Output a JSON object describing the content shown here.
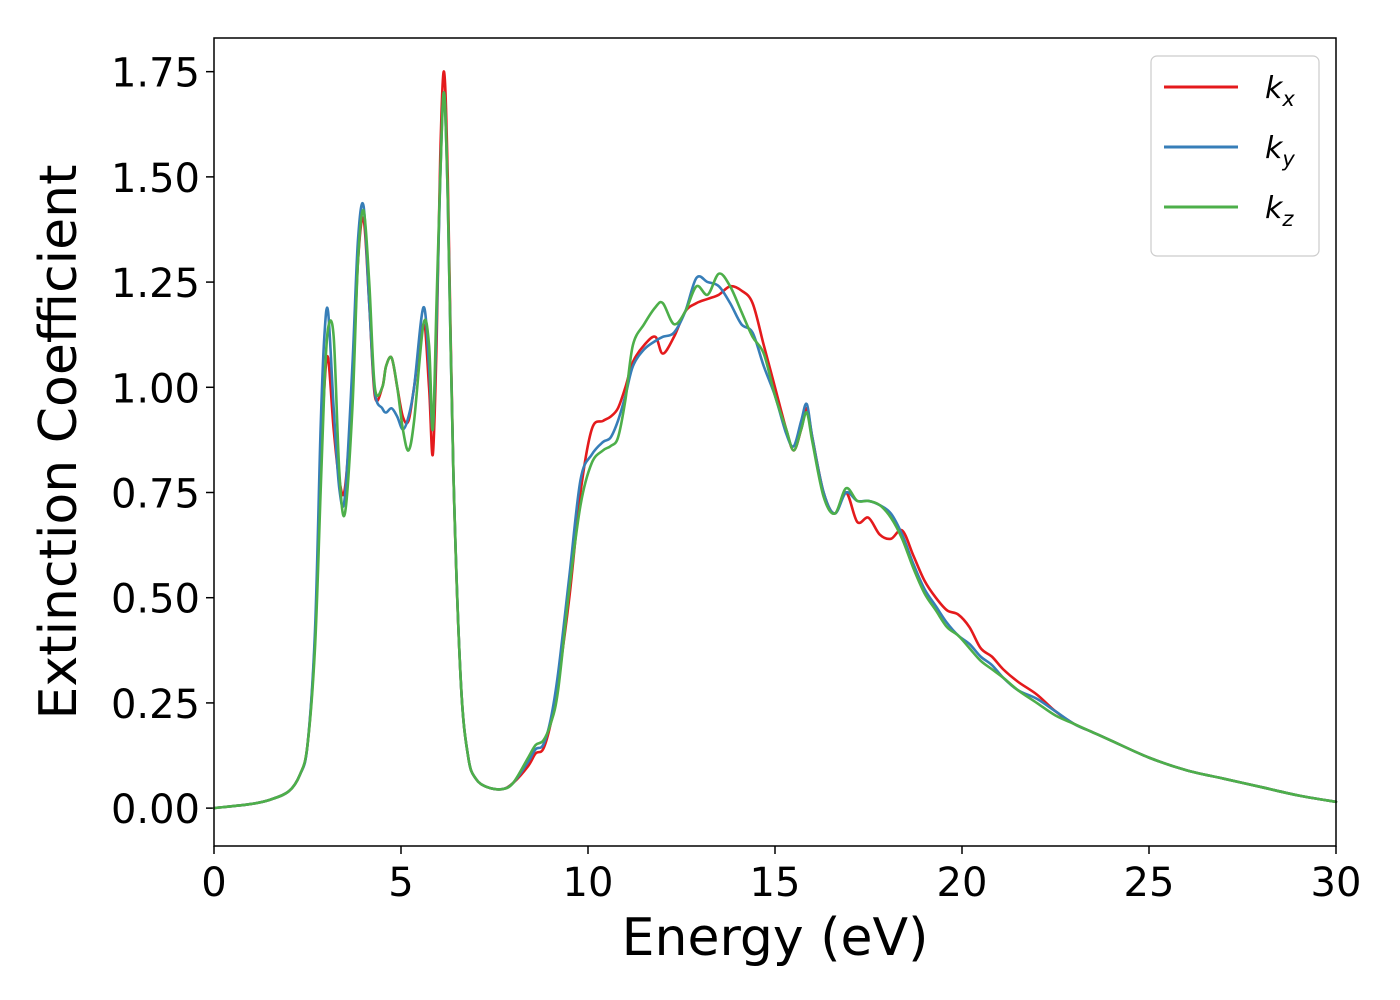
{
  "chart_data": {
    "type": "line",
    "xlabel": "Energy (eV)",
    "ylabel": "Extinction Coefficient",
    "xlim": [
      0,
      30
    ],
    "ylim": [
      -0.09,
      1.83
    ],
    "xticks": [
      0,
      5,
      10,
      15,
      20,
      25,
      30
    ],
    "xtick_labels": [
      "0",
      "5",
      "10",
      "15",
      "20",
      "25",
      "30"
    ],
    "yticks": [
      0,
      0.25,
      0.5,
      0.75,
      1.0,
      1.25,
      1.5,
      1.75
    ],
    "ytick_labels": [
      "0.00",
      "0.25",
      "0.50",
      "0.75",
      "1.00",
      "1.25",
      "1.50",
      "1.75"
    ],
    "grid": false,
    "legend_position": "top-right",
    "series": [
      {
        "name": "k_x",
        "label_base": "k",
        "label_sub": "x",
        "color": "#e41a1c",
        "x": [
          0,
          1,
          1.5,
          2,
          2.3,
          2.5,
          2.7,
          2.85,
          2.95,
          3.05,
          3.2,
          3.35,
          3.5,
          3.7,
          3.85,
          4.0,
          4.15,
          4.3,
          4.5,
          4.6,
          4.75,
          4.9,
          5.05,
          5.2,
          5.35,
          5.6,
          5.75,
          5.85,
          5.95,
          6.05,
          6.15,
          6.25,
          6.4,
          6.6,
          6.8,
          7.0,
          7.3,
          7.7,
          8.0,
          8.4,
          8.6,
          8.8,
          9.0,
          9.2,
          9.5,
          9.8,
          10.1,
          10.4,
          10.6,
          10.8,
          11.0,
          11.2,
          11.5,
          11.8,
          12.0,
          12.3,
          12.6,
          12.9,
          13.2,
          13.5,
          13.8,
          14.1,
          14.4,
          14.7,
          15.0,
          15.3,
          15.5,
          15.7,
          15.85,
          16.0,
          16.3,
          16.6,
          16.9,
          17.2,
          17.5,
          17.8,
          18.1,
          18.4,
          18.7,
          19.0,
          19.3,
          19.6,
          19.9,
          20.2,
          20.5,
          20.8,
          21.1,
          21.5,
          22.0,
          22.5,
          23.0,
          23.5,
          24.0,
          25.0,
          26.0,
          27.0,
          28.0,
          29.0,
          30.0
        ],
        "values": [
          0.0,
          0.01,
          0.02,
          0.04,
          0.08,
          0.15,
          0.4,
          0.8,
          1.0,
          1.07,
          0.9,
          0.78,
          0.76,
          1.0,
          1.3,
          1.4,
          1.2,
          0.98,
          1.0,
          1.05,
          1.07,
          1.0,
          0.93,
          0.92,
          1.0,
          1.15,
          1.0,
          0.84,
          1.1,
          1.55,
          1.75,
          1.5,
          0.8,
          0.3,
          0.12,
          0.07,
          0.05,
          0.045,
          0.06,
          0.1,
          0.13,
          0.14,
          0.2,
          0.3,
          0.5,
          0.75,
          0.9,
          0.92,
          0.93,
          0.95,
          1.0,
          1.06,
          1.1,
          1.12,
          1.08,
          1.12,
          1.18,
          1.2,
          1.21,
          1.22,
          1.24,
          1.23,
          1.2,
          1.1,
          1.0,
          0.9,
          0.85,
          0.9,
          0.95,
          0.88,
          0.75,
          0.7,
          0.75,
          0.68,
          0.69,
          0.65,
          0.64,
          0.66,
          0.6,
          0.54,
          0.5,
          0.47,
          0.46,
          0.43,
          0.38,
          0.36,
          0.33,
          0.3,
          0.27,
          0.23,
          0.2,
          0.18,
          0.16,
          0.12,
          0.09,
          0.07,
          0.05,
          0.03,
          0.015
        ]
      },
      {
        "name": "k_y",
        "label_base": "k",
        "label_sub": "y",
        "color": "#377eb8",
        "x": [
          0,
          1,
          1.5,
          2,
          2.3,
          2.5,
          2.7,
          2.85,
          2.95,
          3.05,
          3.2,
          3.35,
          3.5,
          3.7,
          3.85,
          4.0,
          4.15,
          4.3,
          4.5,
          4.6,
          4.75,
          4.9,
          5.05,
          5.2,
          5.35,
          5.6,
          5.75,
          5.85,
          5.95,
          6.05,
          6.15,
          6.25,
          6.4,
          6.6,
          6.8,
          7.0,
          7.3,
          7.7,
          8.0,
          8.4,
          8.6,
          8.8,
          9.0,
          9.2,
          9.5,
          9.8,
          10.1,
          10.4,
          10.6,
          10.8,
          11.0,
          11.2,
          11.5,
          11.8,
          12.0,
          12.3,
          12.6,
          12.9,
          13.2,
          13.5,
          13.8,
          14.1,
          14.4,
          14.7,
          15.0,
          15.3,
          15.5,
          15.7,
          15.85,
          16.0,
          16.3,
          16.6,
          16.9,
          17.2,
          17.5,
          17.8,
          18.1,
          18.4,
          18.7,
          19.0,
          19.3,
          19.6,
          19.9,
          20.2,
          20.5,
          20.8,
          21.1,
          21.5,
          22.0,
          22.5,
          23.0,
          23.5,
          24.0,
          25.0,
          26.0,
          27.0,
          28.0,
          29.0,
          30.0
        ],
        "values": [
          0.0,
          0.01,
          0.02,
          0.04,
          0.08,
          0.15,
          0.42,
          0.9,
          1.12,
          1.18,
          0.95,
          0.76,
          0.74,
          1.05,
          1.35,
          1.43,
          1.2,
          0.99,
          0.95,
          0.94,
          0.95,
          0.93,
          0.9,
          0.93,
          1.0,
          1.19,
          1.05,
          0.9,
          1.15,
          1.5,
          1.7,
          1.45,
          0.8,
          0.3,
          0.12,
          0.07,
          0.05,
          0.045,
          0.06,
          0.11,
          0.14,
          0.15,
          0.21,
          0.32,
          0.55,
          0.78,
          0.84,
          0.87,
          0.88,
          0.92,
          0.98,
          1.05,
          1.09,
          1.11,
          1.12,
          1.13,
          1.18,
          1.26,
          1.25,
          1.24,
          1.2,
          1.15,
          1.13,
          1.05,
          0.98,
          0.89,
          0.86,
          0.92,
          0.96,
          0.88,
          0.75,
          0.7,
          0.75,
          0.73,
          0.73,
          0.72,
          0.7,
          0.65,
          0.58,
          0.52,
          0.48,
          0.44,
          0.41,
          0.39,
          0.36,
          0.34,
          0.31,
          0.28,
          0.26,
          0.23,
          0.2,
          0.18,
          0.16,
          0.12,
          0.09,
          0.07,
          0.05,
          0.03,
          0.015
        ]
      },
      {
        "name": "k_z",
        "label_base": "k",
        "label_sub": "z",
        "color": "#4daf4a",
        "x": [
          0,
          1,
          1.5,
          2,
          2.3,
          2.5,
          2.7,
          2.85,
          2.95,
          3.05,
          3.2,
          3.35,
          3.5,
          3.7,
          3.85,
          4.0,
          4.15,
          4.3,
          4.5,
          4.6,
          4.75,
          4.9,
          5.05,
          5.2,
          5.35,
          5.6,
          5.75,
          5.85,
          5.95,
          6.05,
          6.15,
          6.25,
          6.4,
          6.6,
          6.8,
          7.0,
          7.3,
          7.7,
          8.0,
          8.4,
          8.6,
          8.8,
          9.0,
          9.2,
          9.5,
          9.8,
          10.1,
          10.4,
          10.6,
          10.8,
          11.0,
          11.2,
          11.5,
          11.8,
          12.0,
          12.3,
          12.6,
          12.9,
          13.2,
          13.5,
          13.8,
          14.1,
          14.4,
          14.7,
          15.0,
          15.3,
          15.5,
          15.7,
          15.85,
          16.0,
          16.3,
          16.6,
          16.9,
          17.2,
          17.5,
          17.8,
          18.1,
          18.4,
          18.7,
          19.0,
          19.3,
          19.6,
          19.9,
          20.2,
          20.5,
          20.8,
          21.1,
          21.5,
          22.0,
          22.5,
          23.0,
          23.5,
          24.0,
          25.0,
          26.0,
          27.0,
          28.0,
          29.0,
          30.0
        ],
        "values": [
          0.0,
          0.01,
          0.02,
          0.04,
          0.08,
          0.15,
          0.38,
          0.75,
          1.0,
          1.14,
          1.12,
          0.8,
          0.7,
          0.95,
          1.3,
          1.42,
          1.25,
          1.0,
          1.0,
          1.05,
          1.07,
          1.0,
          0.9,
          0.85,
          0.92,
          1.15,
          1.1,
          0.9,
          1.2,
          1.5,
          1.7,
          1.45,
          0.8,
          0.3,
          0.12,
          0.07,
          0.05,
          0.045,
          0.06,
          0.12,
          0.15,
          0.16,
          0.2,
          0.28,
          0.52,
          0.72,
          0.82,
          0.85,
          0.86,
          0.88,
          0.97,
          1.1,
          1.15,
          1.19,
          1.2,
          1.15,
          1.18,
          1.24,
          1.22,
          1.27,
          1.24,
          1.18,
          1.12,
          1.08,
          0.98,
          0.9,
          0.85,
          0.9,
          0.94,
          0.87,
          0.74,
          0.7,
          0.76,
          0.73,
          0.73,
          0.72,
          0.69,
          0.64,
          0.57,
          0.51,
          0.47,
          0.43,
          0.41,
          0.38,
          0.35,
          0.33,
          0.31,
          0.28,
          0.25,
          0.22,
          0.2,
          0.18,
          0.16,
          0.12,
          0.09,
          0.07,
          0.05,
          0.03,
          0.015
        ]
      }
    ]
  }
}
